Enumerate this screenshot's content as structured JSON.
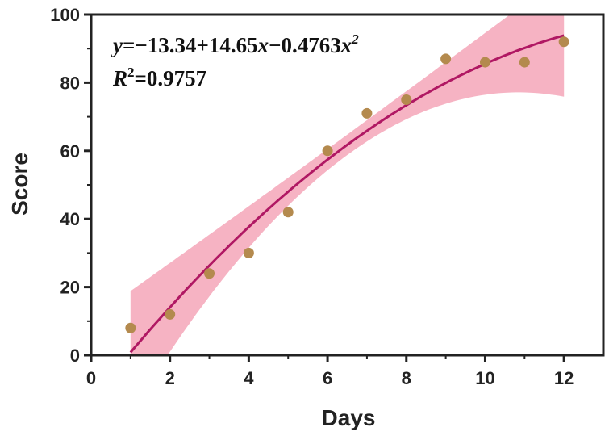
{
  "chart_data": {
    "type": "scatter",
    "xlabel": "Days",
    "ylabel": "Score",
    "xlim": [
      0,
      13
    ],
    "ylim": [
      0,
      100
    ],
    "xticks": [
      0,
      2,
      4,
      6,
      8,
      10,
      12
    ],
    "yticks": [
      0,
      20,
      40,
      60,
      80,
      100
    ],
    "grid": false,
    "points": {
      "x": [
        1,
        2,
        3,
        4,
        5,
        6,
        7,
        8,
        9,
        10,
        11,
        12
      ],
      "y": [
        8,
        12,
        24,
        30,
        42,
        60,
        71,
        75,
        87,
        86,
        86,
        92
      ]
    },
    "fit": {
      "type": "quadratic",
      "coefficients": {
        "a": -13.34,
        "b": 14.65,
        "c": -0.4763
      },
      "x_range": [
        1,
        12
      ],
      "equation_prefix": "y",
      "equation_middle": "=−13.34+14.65",
      "equation_x1": "x",
      "equation_tail": "−0.4763",
      "equation_x2": "x",
      "equation_power": "2",
      "r2_prefix": "R",
      "r2_power": "2",
      "r2_value": "=0.9757"
    },
    "colors": {
      "points": "#b48a4e",
      "fit_line": "#b01863",
      "confidence_band": "#f4a0b4",
      "axis": "#222222"
    }
  }
}
